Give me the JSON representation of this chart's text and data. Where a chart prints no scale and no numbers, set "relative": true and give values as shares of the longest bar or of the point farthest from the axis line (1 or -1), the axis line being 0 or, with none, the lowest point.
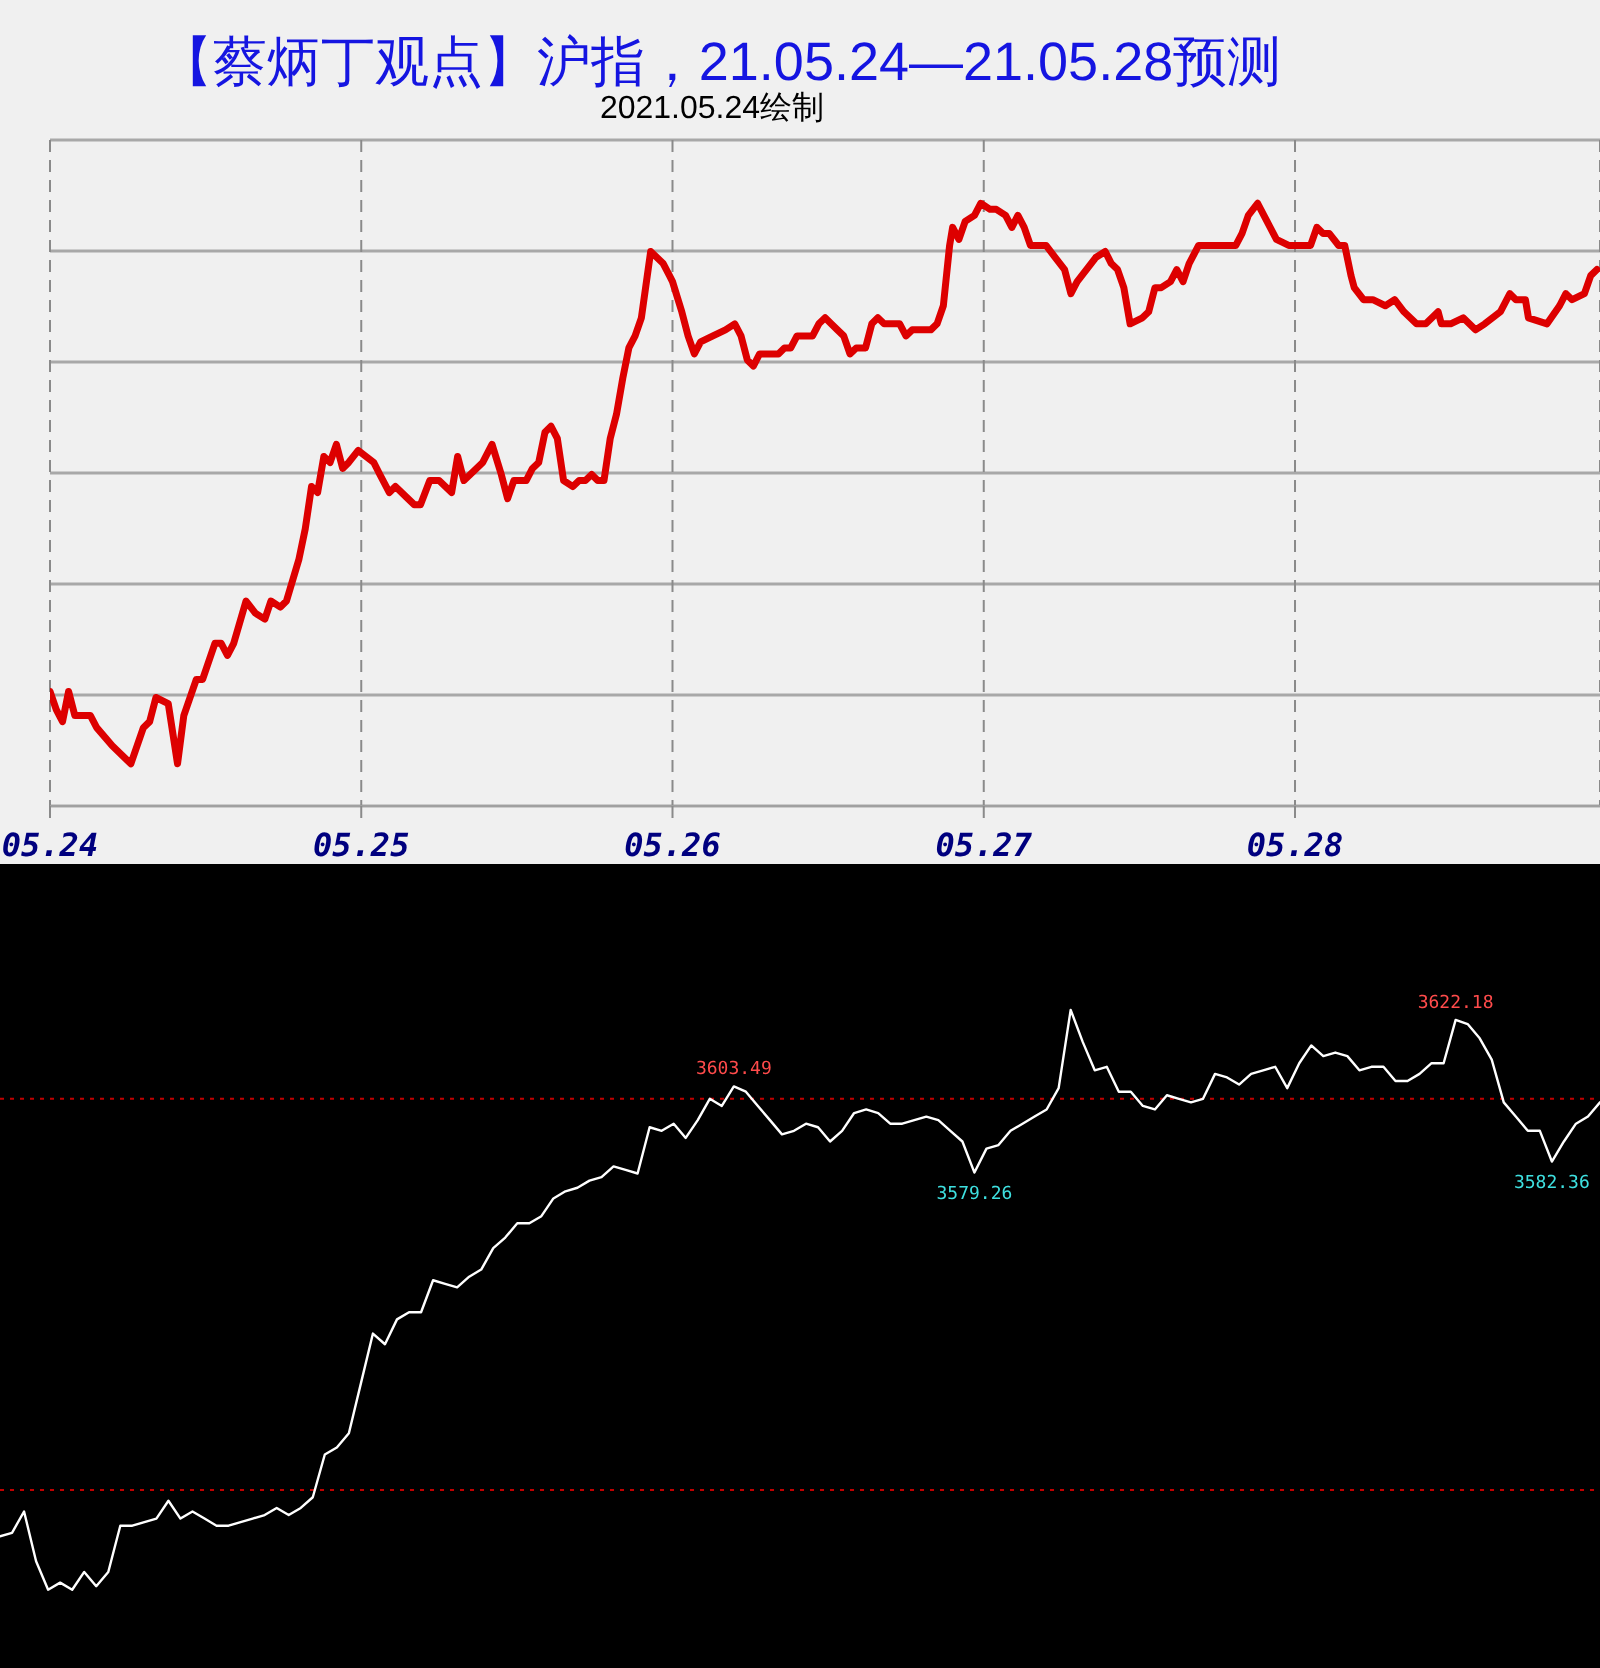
{
  "chart_data": [
    {
      "type": "line",
      "title": "【蔡炳丁观点】沪指，21.05.24—21.05.28预测",
      "subtitle": "2021.05.24绘制",
      "relative": true,
      "grid": true,
      "xlim": [
        "2021-05-24T00:00",
        "2021-05-28T23:31"
      ],
      "xticks": [
        {
          "value": "2021-05-24",
          "label": "05.24"
        },
        {
          "value": "2021-05-25",
          "label": "05.25"
        },
        {
          "value": "2021-05-26",
          "label": "05.26"
        },
        {
          "value": "2021-05-27",
          "label": "05.27"
        },
        {
          "value": "2021-05-28",
          "label": "05.28"
        }
      ],
      "x": [
        "2021-05-24T00:00",
        "2021-05-24T00:29",
        "2021-05-24T00:58",
        "2021-05-24T01:26",
        "2021-05-24T01:55",
        "2021-05-24T03:07",
        "2021-05-24T03:36",
        "2021-05-24T04:48",
        "2021-05-24T06:14",
        "2021-05-24T07:12",
        "2021-05-24T07:41",
        "2021-05-24T08:10",
        "2021-05-24T09:07",
        "2021-05-24T09:50",
        "2021-05-24T10:19",
        "2021-05-24T11:17",
        "2021-05-24T11:46",
        "2021-05-24T12:43",
        "2021-05-24T13:12",
        "2021-05-24T13:41",
        "2021-05-24T14:10",
        "2021-05-24T15:07",
        "2021-05-24T15:50",
        "2021-05-24T16:34",
        "2021-05-24T17:02",
        "2021-05-24T17:46",
        "2021-05-24T18:14",
        "2021-05-24T19:12",
        "2021-05-24T19:41",
        "2021-05-24T20:10",
        "2021-05-24T20:38",
        "2021-05-24T21:07",
        "2021-05-24T21:36",
        "2021-05-24T22:05",
        "2021-05-24T22:34",
        "2021-05-24T23:02",
        "2021-05-24T23:46",
        "2021-05-25T00:58",
        "2021-05-25T01:26",
        "2021-05-25T02:10",
        "2021-05-25T02:38",
        "2021-05-25T03:36",
        "2021-05-25T04:05",
        "2021-05-25T04:34",
        "2021-05-25T05:17",
        "2021-05-25T06:00",
        "2021-05-25T06:58",
        "2021-05-25T07:26",
        "2021-05-25T07:55",
        "2021-05-25T08:24",
        "2021-05-25T09:22",
        "2021-05-25T10:05",
        "2021-05-25T10:48",
        "2021-05-25T11:17",
        "2021-05-25T11:46",
        "2021-05-25T12:14",
        "2021-05-25T12:43",
        "2021-05-25T13:12",
        "2021-05-25T13:41",
        "2021-05-25T14:10",
        "2021-05-25T14:38",
        "2021-05-25T15:07",
        "2021-05-25T15:36",
        "2021-05-25T16:19",
        "2021-05-25T16:48",
        "2021-05-25T17:17",
        "2021-05-25T17:46",
        "2021-05-25T18:14",
        "2021-05-25T18:43",
        "2021-05-25T19:12",
        "2021-05-25T19:41",
        "2021-05-25T20:10",
        "2021-05-25T20:38",
        "2021-05-25T21:07",
        "2021-05-25T21:36",
        "2021-05-25T22:19",
        "2021-05-25T22:48",
        "2021-05-25T23:17",
        "2021-05-25T23:46",
        "2021-05-26T00:00",
        "2021-05-26T00:43",
        "2021-05-26T01:12",
        "2021-05-26T01:41",
        "2021-05-26T02:10",
        "2021-05-26T03:07",
        "2021-05-26T04:05",
        "2021-05-26T04:48",
        "2021-05-26T05:17",
        "2021-05-26T05:46",
        "2021-05-26T06:14",
        "2021-05-26T06:43",
        "2021-05-26T08:10",
        "2021-05-26T08:38",
        "2021-05-26T09:07",
        "2021-05-26T09:36",
        "2021-05-26T10:48",
        "2021-05-26T11:17",
        "2021-05-26T11:46",
        "2021-05-26T12:14",
        "2021-05-26T12:43",
        "2021-05-26T13:12",
        "2021-05-26T13:41",
        "2021-05-26T14:10",
        "2021-05-26T14:53",
        "2021-05-26T15:22",
        "2021-05-26T15:50",
        "2021-05-26T16:19",
        "2021-05-26T17:02",
        "2021-05-26T17:31",
        "2021-05-26T18:00",
        "2021-05-26T18:29",
        "2021-05-26T19:55",
        "2021-05-26T20:24",
        "2021-05-26T20:53",
        "2021-05-26T21:22",
        "2021-05-26T21:36",
        "2021-05-26T22:05",
        "2021-05-26T22:34",
        "2021-05-26T23:17",
        "2021-05-26T23:46",
        "2021-05-27T00:29",
        "2021-05-27T00:58",
        "2021-05-27T01:41",
        "2021-05-27T02:10",
        "2021-05-27T02:38",
        "2021-05-27T03:07",
        "2021-05-27T03:36",
        "2021-05-27T04:05",
        "2021-05-27T04:48",
        "2021-05-27T05:31",
        "2021-05-27T06:14",
        "2021-05-27T06:43",
        "2021-05-27T07:12",
        "2021-05-27T07:55",
        "2021-05-27T08:38",
        "2021-05-27T09:22",
        "2021-05-27T09:50",
        "2021-05-27T10:19",
        "2021-05-27T10:48",
        "2021-05-27T11:17",
        "2021-05-27T12:14",
        "2021-05-27T12:43",
        "2021-05-27T13:12",
        "2021-05-27T13:41",
        "2021-05-27T14:24",
        "2021-05-27T14:53",
        "2021-05-27T15:22",
        "2021-05-27T15:50",
        "2021-05-27T16:34",
        "2021-05-27T17:02",
        "2021-05-27T18:00",
        "2021-05-27T18:43",
        "2021-05-27T19:26",
        "2021-05-27T19:55",
        "2021-05-27T20:24",
        "2021-05-27T21:07",
        "2021-05-27T21:36",
        "2021-05-27T22:05",
        "2021-05-27T22:34",
        "2021-05-27T23:31",
        "2021-05-28T00:14",
        "2021-05-28T01:12",
        "2021-05-28T01:41",
        "2021-05-28T02:10",
        "2021-05-28T02:38",
        "2021-05-28T03:22",
        "2021-05-28T03:50",
        "2021-05-28T04:19",
        "2021-05-28T04:34",
        "2021-05-28T05:17",
        "2021-05-28T06:00",
        "2021-05-28T06:58",
        "2021-05-28T07:41",
        "2021-05-28T08:24",
        "2021-05-28T09:22",
        "2021-05-28T10:05",
        "2021-05-28T11:02",
        "2021-05-28T11:17",
        "2021-05-28T12:00",
        "2021-05-28T12:58",
        "2021-05-28T13:55",
        "2021-05-28T14:38",
        "2021-05-28T15:50",
        "2021-05-28T16:34",
        "2021-05-28T17:02",
        "2021-05-28T17:46",
        "2021-05-28T18:00",
        "2021-05-28T19:26",
        "2021-05-28T20:24",
        "2021-05-28T20:53",
        "2021-05-28T21:22",
        "2021-05-28T22:19",
        "2021-05-28T22:48",
        "2021-05-28T23:17"
      ],
      "series": [
        {
          "color": "#dd0000",
          "values": [
            0.19,
            0.16,
            0.14,
            0.19,
            0.15,
            0.15,
            0.13,
            0.1,
            0.07,
            0.13,
            0.14,
            0.18,
            0.17,
            0.07,
            0.15,
            0.21,
            0.21,
            0.27,
            0.27,
            0.25,
            0.27,
            0.34,
            0.32,
            0.31,
            0.34,
            0.33,
            0.34,
            0.41,
            0.46,
            0.53,
            0.52,
            0.58,
            0.57,
            0.6,
            0.56,
            0.57,
            0.59,
            0.57,
            0.55,
            0.52,
            0.53,
            0.51,
            0.5,
            0.5,
            0.54,
            0.54,
            0.52,
            0.58,
            0.54,
            0.55,
            0.57,
            0.6,
            0.55,
            0.51,
            0.54,
            0.54,
            0.54,
            0.56,
            0.57,
            0.62,
            0.63,
            0.61,
            0.54,
            0.53,
            0.54,
            0.54,
            0.55,
            0.54,
            0.54,
            0.61,
            0.65,
            0.71,
            0.76,
            0.78,
            0.81,
            0.92,
            0.91,
            0.9,
            0.88,
            0.87,
            0.82,
            0.78,
            0.75,
            0.77,
            0.78,
            0.79,
            0.8,
            0.78,
            0.74,
            0.73,
            0.75,
            0.75,
            0.76,
            0.76,
            0.78,
            0.78,
            0.8,
            0.81,
            0.8,
            0.79,
            0.78,
            0.75,
            0.76,
            0.76,
            0.8,
            0.81,
            0.8,
            0.8,
            0.8,
            0.78,
            0.79,
            0.79,
            0.8,
            0.83,
            0.93,
            0.96,
            0.94,
            0.97,
            0.98,
            1,
            0.99,
            0.99,
            0.98,
            0.96,
            0.98,
            0.96,
            0.93,
            0.93,
            0.93,
            0.91,
            0.89,
            0.85,
            0.87,
            0.89,
            0.91,
            0.92,
            0.9,
            0.89,
            0.86,
            0.8,
            0.81,
            0.82,
            0.86,
            0.86,
            0.87,
            0.89,
            0.87,
            0.9,
            0.93,
            0.93,
            0.93,
            0.93,
            0.93,
            0.95,
            0.98,
            1,
            0.98,
            0.96,
            0.94,
            0.93,
            0.93,
            0.93,
            0.96,
            0.95,
            0.95,
            0.93,
            0.93,
            0.88,
            0.86,
            0.84,
            0.84,
            0.83,
            0.84,
            0.82,
            0.8,
            0.8,
            0.82,
            0.8,
            0.8,
            0.81,
            0.79,
            0.8,
            0.82,
            0.85,
            0.84,
            0.84,
            0.81,
            0.8,
            0.83,
            0.85,
            0.84,
            0.85,
            0.88,
            0.89
          ]
        }
      ]
    },
    {
      "type": "line",
      "tick_labels": false,
      "ylim": [
        3440,
        3666
      ],
      "categories": [
        null,
        null,
        null,
        null,
        null,
        null,
        null,
        null,
        null,
        null,
        null,
        null,
        null,
        null,
        null,
        null,
        null,
        null,
        null,
        null,
        null,
        null,
        null,
        null,
        null,
        null,
        null,
        null,
        null,
        null,
        null,
        null,
        null,
        null,
        null,
        null,
        null,
        null,
        null,
        null,
        null,
        null,
        null,
        null,
        null,
        null,
        null,
        null,
        null,
        null,
        null,
        null,
        null,
        null,
        null,
        null,
        null,
        null,
        null,
        null,
        null,
        null,
        null,
        null,
        null,
        null,
        null,
        null,
        null,
        null,
        null,
        null,
        null,
        null,
        null,
        null,
        null,
        null,
        null,
        null,
        null,
        null,
        null,
        null,
        null,
        null,
        null,
        null,
        null,
        null,
        null,
        null,
        null,
        null,
        null,
        null,
        null,
        null,
        null,
        null,
        null,
        null,
        null,
        null,
        null,
        null,
        null,
        null,
        null,
        null,
        null,
        null,
        null,
        null,
        null,
        null,
        null,
        null,
        null,
        null,
        null,
        null,
        null,
        null,
        null,
        null,
        null,
        null,
        null,
        null,
        null,
        null,
        null,
        null
      ],
      "ref_lines": [
        {
          "axis": "y",
          "value": 3600,
          "color": "#c00000",
          "line_style": "dotted"
        },
        {
          "axis": "y",
          "value": 3490,
          "color": "#c00000",
          "line_style": "dotted"
        }
      ],
      "series": [
        {
          "color": "#ffffff",
          "values": [
            3477,
            3478,
            3484,
            3470,
            3462,
            3464,
            3462,
            3467,
            3463,
            3467,
            3480,
            3480,
            3481,
            3482,
            3487,
            3482,
            3484,
            3482,
            3480,
            3480,
            3481,
            3482,
            3483,
            3485,
            3483,
            3485,
            3488,
            3500,
            3502,
            3506,
            3520,
            3534,
            3531,
            3538,
            3540,
            3540,
            3549,
            3548,
            3547,
            3550,
            3552,
            3558,
            3561,
            3565,
            3565,
            3567,
            3572,
            3574,
            3575,
            3577,
            3578,
            3581,
            3580,
            3579,
            3592,
            3591,
            3593,
            3589,
            3594,
            3600,
            3598,
            3603.49,
            3602,
            3598,
            3594,
            3590,
            3591,
            3593,
            3592,
            3588,
            3591,
            3596,
            3597,
            3596,
            3593,
            3593,
            3594,
            3595,
            3594,
            3591,
            3588,
            3579.26,
            3586,
            3587,
            3591,
            3593,
            3595,
            3597,
            3603,
            3625,
            3616,
            3608,
            3609,
            3602,
            3602,
            3598,
            3597,
            3601,
            3600,
            3599,
            3600,
            3607,
            3606,
            3604,
            3607,
            3608,
            3609,
            3603,
            3610,
            3615,
            3612,
            3613,
            3612,
            3608,
            3609,
            3609,
            3605,
            3605,
            3607,
            3610,
            3610,
            3622.18,
            3621,
            3617,
            3611,
            3599,
            3595,
            3591,
            3591,
            3582.36,
            3588,
            3593,
            3595,
            3599
          ],
          "value_labels": [
            null,
            null,
            null,
            null,
            null,
            null,
            null,
            null,
            null,
            null,
            null,
            null,
            null,
            null,
            null,
            null,
            null,
            null,
            null,
            null,
            null,
            null,
            null,
            null,
            null,
            null,
            null,
            null,
            null,
            null,
            null,
            null,
            null,
            null,
            null,
            null,
            null,
            null,
            null,
            null,
            null,
            null,
            null,
            null,
            null,
            null,
            null,
            null,
            null,
            null,
            null,
            null,
            null,
            null,
            null,
            null,
            null,
            null,
            null,
            null,
            null,
            "3603.49",
            null,
            null,
            null,
            null,
            null,
            null,
            null,
            null,
            null,
            null,
            null,
            null,
            null,
            null,
            null,
            null,
            null,
            null,
            null,
            "3579.26",
            null,
            null,
            null,
            null,
            null,
            null,
            null,
            null,
            null,
            null,
            null,
            null,
            null,
            null,
            null,
            null,
            null,
            null,
            null,
            null,
            null,
            null,
            null,
            null,
            null,
            null,
            null,
            null,
            null,
            null,
            null,
            null,
            null,
            null,
            null,
            null,
            null,
            null,
            null,
            "3622.18",
            null,
            null,
            null,
            null,
            null,
            null,
            null,
            "3582.36",
            null,
            null,
            null,
            null
          ]
        }
      ]
    }
  ]
}
